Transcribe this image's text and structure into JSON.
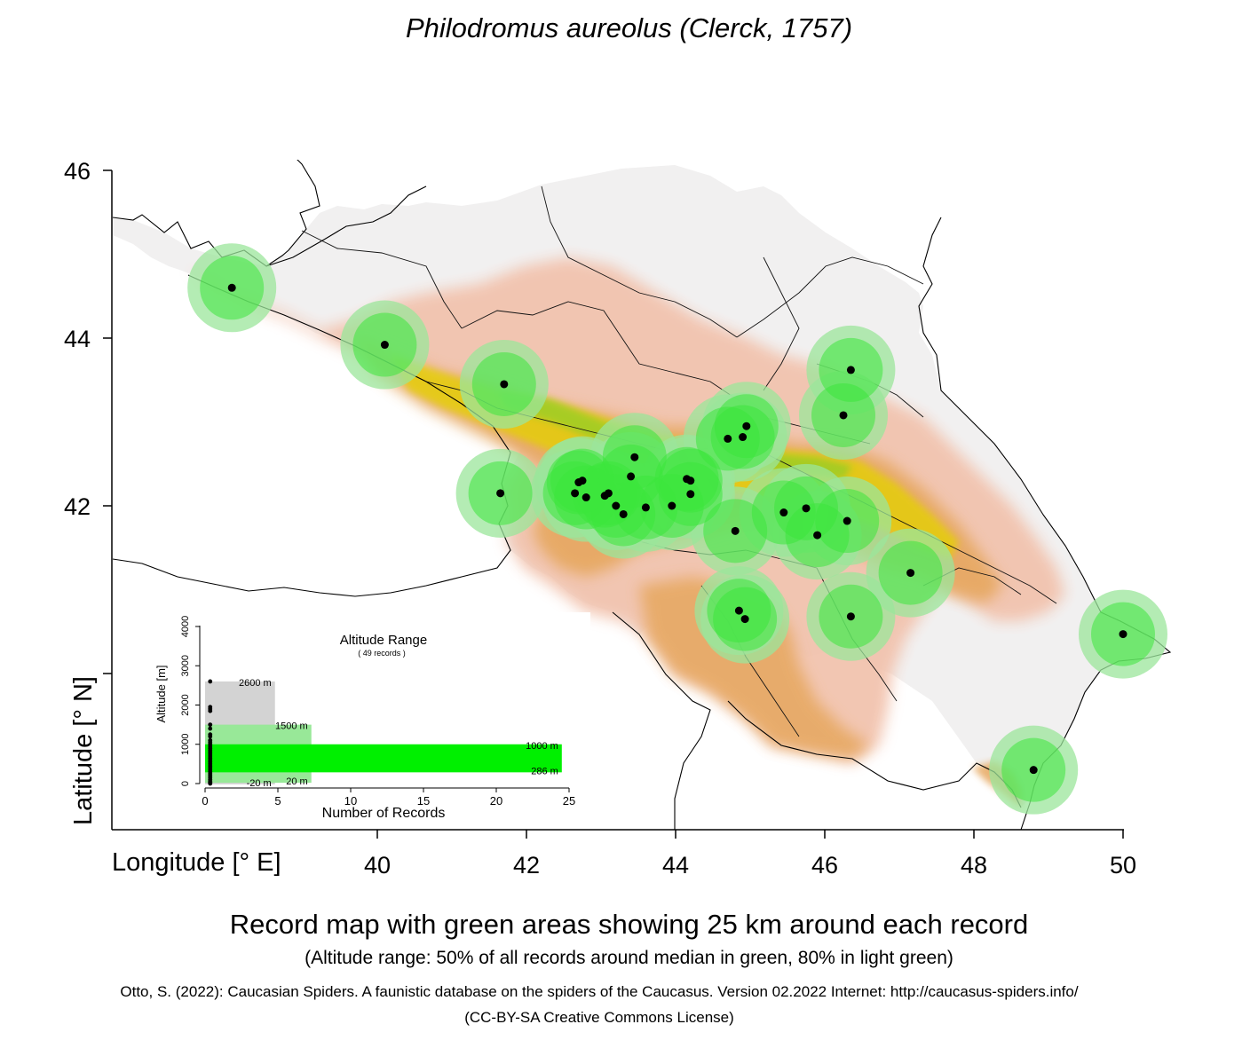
{
  "title": "Philodromus aureolus (Clerck, 1757)",
  "axes": {
    "xlabel": "Longitude [° E]",
    "ylabel": "Latitude [° N]",
    "xticks": [
      "40",
      "42",
      "44",
      "46",
      "48",
      "50"
    ],
    "yticks": [
      "46",
      "44",
      "42"
    ]
  },
  "caption": "Record map with green areas showing 25 km around each record",
  "subcaption": "(Altitude range: 50% of all records around median in green, 80% in light green)",
  "credit": "Otto, S. (2022): Caucasian Spiders. A faunistic database on the spiders of the Caucasus. Version 02.2022 Internet: http://caucasus-spiders.info/",
  "license": "(CC-BY-SA Creative Commons License)",
  "colors": {
    "buffer_green": "#3ce63c",
    "light_green": "#9be69b",
    "lowland": "#f0f0f0",
    "foothill": "#f2c2ad",
    "midland": "#e6a65c",
    "highland": "#e6d200",
    "alpine": "#7fcf2a",
    "record": "#000000"
  },
  "records": [
    {
      "lon": 38.05,
      "lat": 44.6
    },
    {
      "lon": 40.1,
      "lat": 43.92
    },
    {
      "lon": 41.7,
      "lat": 43.45
    },
    {
      "lon": 41.65,
      "lat": 42.15
    },
    {
      "lon": 42.65,
      "lat": 42.15
    },
    {
      "lon": 42.7,
      "lat": 42.28
    },
    {
      "lon": 42.75,
      "lat": 42.3
    },
    {
      "lon": 42.8,
      "lat": 42.1
    },
    {
      "lon": 43.05,
      "lat": 42.12
    },
    {
      "lon": 43.1,
      "lat": 42.15
    },
    {
      "lon": 43.2,
      "lat": 42.0
    },
    {
      "lon": 43.3,
      "lat": 41.9
    },
    {
      "lon": 43.4,
      "lat": 42.35
    },
    {
      "lon": 43.45,
      "lat": 42.58
    },
    {
      "lon": 43.6,
      "lat": 41.98
    },
    {
      "lon": 43.95,
      "lat": 42.0
    },
    {
      "lon": 44.15,
      "lat": 42.32
    },
    {
      "lon": 44.2,
      "lat": 42.3
    },
    {
      "lon": 44.2,
      "lat": 42.14
    },
    {
      "lon": 44.7,
      "lat": 42.8
    },
    {
      "lon": 44.9,
      "lat": 42.82
    },
    {
      "lon": 44.95,
      "lat": 42.95
    },
    {
      "lon": 44.8,
      "lat": 41.7
    },
    {
      "lon": 44.85,
      "lat": 40.75
    },
    {
      "lon": 44.93,
      "lat": 40.65
    },
    {
      "lon": 45.45,
      "lat": 41.92
    },
    {
      "lon": 45.75,
      "lat": 41.97
    },
    {
      "lon": 45.9,
      "lat": 41.65
    },
    {
      "lon": 46.3,
      "lat": 41.82
    },
    {
      "lon": 46.25,
      "lat": 43.08
    },
    {
      "lon": 46.35,
      "lat": 43.62
    },
    {
      "lon": 46.35,
      "lat": 40.68
    },
    {
      "lon": 47.15,
      "lat": 41.2
    },
    {
      "lon": 50.0,
      "lat": 40.47
    },
    {
      "lon": 48.8,
      "lat": 38.85
    }
  ],
  "inset": {
    "title": "Altitude Range",
    "subtitle": "( 49 records )",
    "xlabel": "Number of Records",
    "ylabel": "Altitude [m]",
    "xticks": [
      "0",
      "5",
      "10",
      "15",
      "20",
      "25"
    ],
    "yticks": [
      "0",
      "1000",
      "2000",
      "3000",
      "4000"
    ],
    "xlim": [
      0,
      25
    ],
    "ylim": [
      0,
      4000
    ],
    "ranges": [
      {
        "min": -20,
        "max": 2600,
        "width": 4.8,
        "color": "#d3d3d3",
        "label_max": "2600  m",
        "label_min": "-20  m"
      },
      {
        "min": 20,
        "max": 1500,
        "width": 7.3,
        "color": "#98e898",
        "label_max": "1500  m",
        "label_min": "20  m"
      },
      {
        "min": 286,
        "max": 1000,
        "width": 24.5,
        "color": "#00f000",
        "label_max": "1000  m",
        "label_min": "286  m"
      }
    ],
    "altitudes": [
      2600,
      1950,
      1900,
      1850,
      1500,
      1400,
      1250,
      1200,
      1100,
      1050,
      1000,
      950,
      900,
      850,
      800,
      750,
      700,
      650,
      600,
      550,
      500,
      450,
      400,
      350,
      300,
      250,
      200,
      150,
      100,
      60,
      30,
      20,
      0
    ]
  }
}
